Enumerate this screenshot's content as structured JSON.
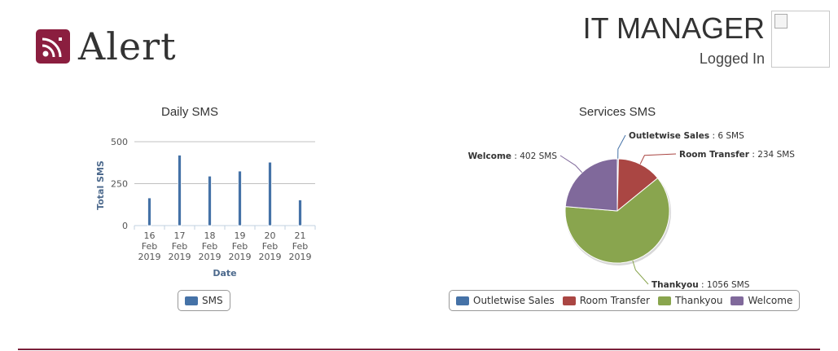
{
  "header": {
    "logo_text": "Alert",
    "title": "IT MANAGER",
    "subtitle": "Logged In",
    "logo_color": "#8b1e3f"
  },
  "charts": {
    "daily": {
      "legend_label": "SMS"
    },
    "services": {
      "legend": [
        "Outletwise Sales",
        "Room Transfer",
        "Thankyou",
        "Welcome"
      ]
    }
  },
  "chart_data": [
    {
      "type": "bar",
      "title": "Daily SMS",
      "xlabel": "Date",
      "ylabel": "Total SMS",
      "categories": [
        "16 Feb 2019",
        "17 Feb 2019",
        "18 Feb 2019",
        "19 Feb 2019",
        "20 Feb 2019",
        "21 Feb 2019"
      ],
      "series": [
        {
          "name": "SMS",
          "values": [
            165,
            420,
            295,
            325,
            378,
            153
          ],
          "color": "#4572a7"
        }
      ],
      "ylim": [
        0,
        500
      ],
      "yticks": [
        0,
        250,
        500
      ],
      "grid": true,
      "legend": "bottom"
    },
    {
      "type": "pie",
      "title": "Services SMS",
      "labels": [
        "Outletwise Sales",
        "Room Transfer",
        "Thankyou",
        "Welcome"
      ],
      "values": [
        6,
        234,
        1056,
        402
      ],
      "unit": "SMS",
      "colors": [
        "#4572a7",
        "#aa4643",
        "#89a54e",
        "#80699b"
      ],
      "legend": "bottom"
    }
  ]
}
